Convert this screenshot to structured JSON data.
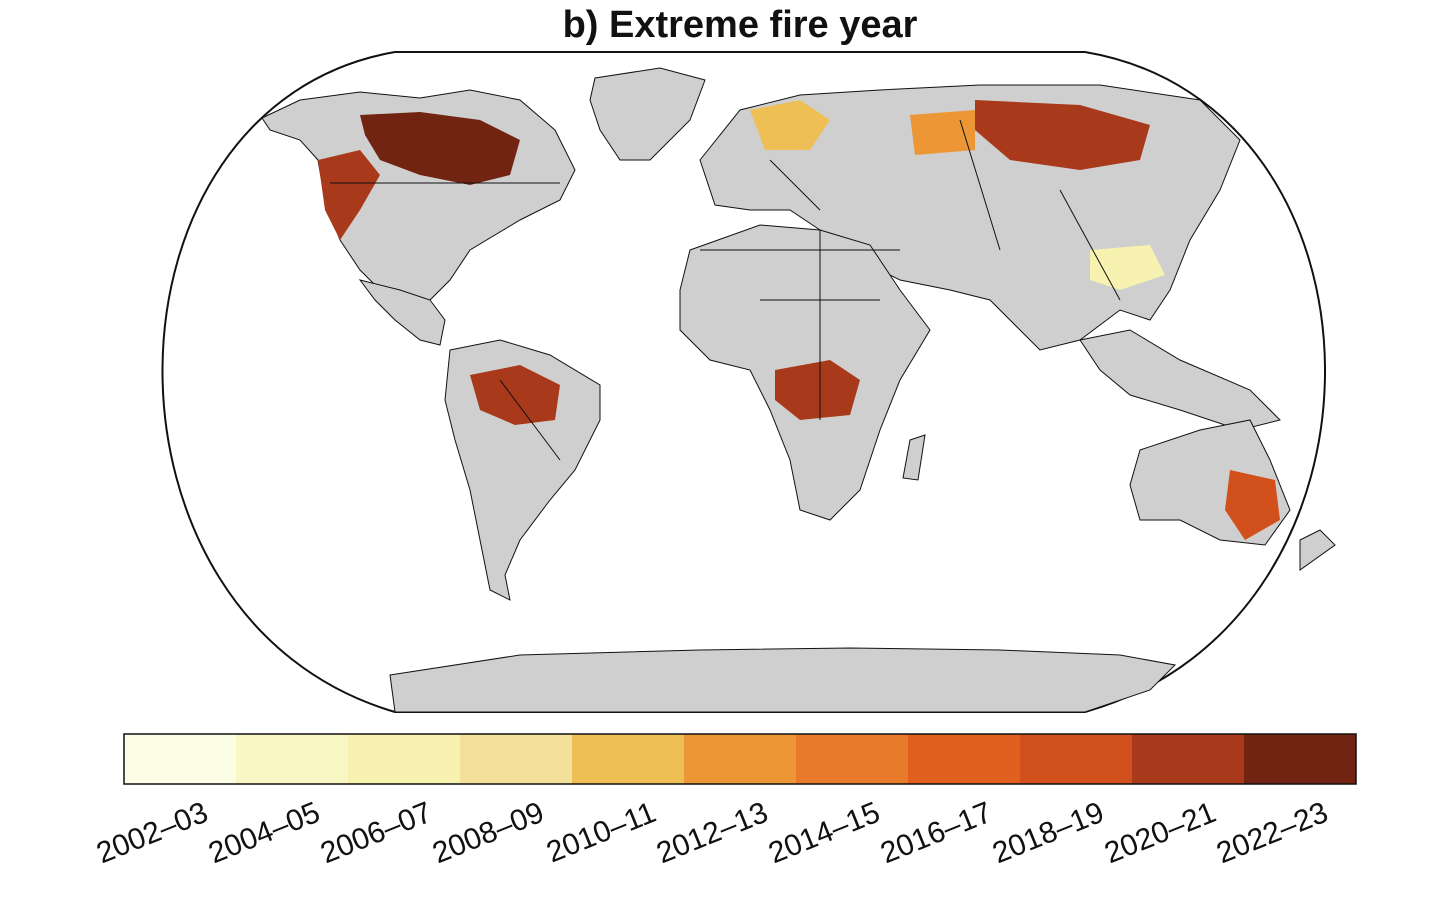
{
  "title": "b) Extreme fire year",
  "colors": {
    "land": "#cfcfcf",
    "ocean": "#ffffff",
    "border": "#111111"
  },
  "legend": {
    "type": "categorical colorbar",
    "placement": "bottom",
    "bins": [
      {
        "label": "2002–03",
        "color": "#fbfde4"
      },
      {
        "label": "2004–05",
        "color": "#f9f7c3"
      },
      {
        "label": "2006–07",
        "color": "#f8f2b0"
      },
      {
        "label": "2008–09",
        "color": "#f3e199"
      },
      {
        "label": "2010–11",
        "color": "#eebf55"
      },
      {
        "label": "2012–13",
        "color": "#ec9636"
      },
      {
        "label": "2014–15",
        "color": "#e87a2c"
      },
      {
        "label": "2016–17",
        "color": "#e2601f"
      },
      {
        "label": "2018–19",
        "color": "#d2501c"
      },
      {
        "label": "2020–21",
        "color": "#a8391a"
      },
      {
        "label": "2022–23",
        "color": "#722412"
      }
    ]
  },
  "map": {
    "projection": "Robinson",
    "regions": [
      {
        "name": "Canada boreal",
        "bin": "2022–23"
      },
      {
        "name": "Western North America",
        "bin": "2020–21"
      },
      {
        "name": "Siberia",
        "bin": "2020–21"
      },
      {
        "name": "Central Africa",
        "bin": "2020–21"
      },
      {
        "name": "Amazon",
        "bin": "2020–21"
      },
      {
        "name": "Eastern Australia",
        "bin": "2018–19"
      },
      {
        "name": "Central Asia",
        "bin": "2012–13"
      },
      {
        "name": "Northern Europe",
        "bin": "2010–11"
      },
      {
        "name": "Southern China",
        "bin": "2006–07"
      }
    ]
  }
}
